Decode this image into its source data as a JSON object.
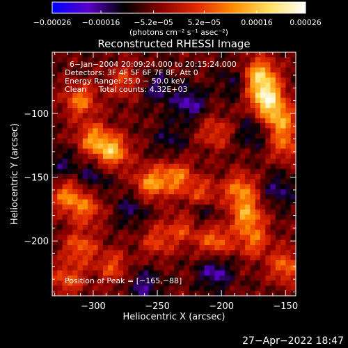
{
  "chart_data": {
    "type": "heatmap",
    "title": "Reconstructed RHESSI Image",
    "xlabel": "Heliocentric X (arcsec)",
    "ylabel": "Heliocentric Y (arcsec)",
    "xlim": [
      -332,
      -142
    ],
    "ylim": [
      -243,
      -52
    ],
    "x_ticks": [
      {
        "value": -300,
        "label": "−300"
      },
      {
        "value": -250,
        "label": "−250"
      },
      {
        "value": -200,
        "label": "−200"
      },
      {
        "value": -150,
        "label": "−150"
      }
    ],
    "y_ticks": [
      {
        "value": -100,
        "label": "−100"
      },
      {
        "value": -150,
        "label": "−150"
      },
      {
        "value": -200,
        "label": "−200"
      }
    ],
    "colorbar": {
      "min": -0.00026,
      "max": 0.00026,
      "ticks": [
        {
          "value": -0.00026,
          "label": "−0.00026"
        },
        {
          "value": -0.00016,
          "label": "−0.00016"
        },
        {
          "value": -5.2e-05,
          "label": "−5.2e−05"
        },
        {
          "value": 5.2e-05,
          "label": "5.2e−05"
        },
        {
          "value": 0.00016,
          "label": "0.00016"
        },
        {
          "value": 0.00026,
          "label": "0.00026"
        }
      ],
      "unit_label": "(photons cm⁻² s⁻¹ asec⁻²)",
      "colors": [
        "#0000ff",
        "#5a00c8",
        "#000000",
        "#8a0000",
        "#e22a00",
        "#ff8c00",
        "#ffe060",
        "#ffffff"
      ]
    },
    "annotations": [
      "6−Jan−2004 20:09:24.000 to 20:15:24.000",
      "Detectors: 3F 4F 5F 6F 7F 8F, Att 0",
      "Energy Range: 25.0 − 50.0 keV",
      "Clean     Total counts: 4.32E+03"
    ],
    "peak_label": "Position of Peak = [−165,−88]",
    "peak": [
      -165,
      -88
    ],
    "hotspots": [
      {
        "x": -165,
        "y": -88,
        "intensity": 0.00026
      },
      {
        "x": -170,
        "y": -70,
        "intensity": 0.00022
      },
      {
        "x": -155,
        "y": -105,
        "intensity": 0.00018
      },
      {
        "x": -285,
        "y": -130,
        "intensity": 0.0002
      },
      {
        "x": -300,
        "y": -120,
        "intensity": 0.00016
      },
      {
        "x": -310,
        "y": -90,
        "intensity": 0.00015
      },
      {
        "x": -255,
        "y": -155,
        "intensity": 0.00017
      },
      {
        "x": -235,
        "y": -150,
        "intensity": 0.00015
      },
      {
        "x": -215,
        "y": -165,
        "intensity": 0.00014
      },
      {
        "x": -185,
        "y": -160,
        "intensity": 0.00016
      },
      {
        "x": -180,
        "y": -180,
        "intensity": 0.00017
      },
      {
        "x": -175,
        "y": -200,
        "intensity": 0.00013
      },
      {
        "x": -205,
        "y": -200,
        "intensity": 0.00014
      },
      {
        "x": -320,
        "y": -165,
        "intensity": 0.00015
      },
      {
        "x": -305,
        "y": -175,
        "intensity": 0.00012
      },
      {
        "x": -310,
        "y": -205,
        "intensity": 0.00013
      },
      {
        "x": -320,
        "y": -230,
        "intensity": 0.00012
      },
      {
        "x": -285,
        "y": -220,
        "intensity": 0.00011
      },
      {
        "x": -250,
        "y": -200,
        "intensity": 0.0001
      },
      {
        "x": -150,
        "y": -220,
        "intensity": 0.00014
      },
      {
        "x": -150,
        "y": -125,
        "intensity": 0.00012
      },
      {
        "x": -205,
        "y": -115,
        "intensity": 0.0001
      },
      {
        "x": -275,
        "y": -75,
        "intensity": 0.0001
      },
      {
        "x": -230,
        "y": -190,
        "intensity": 0.0001
      }
    ],
    "coldspots": [
      {
        "x": -225,
        "y": -92,
        "intensity": -0.00012
      },
      {
        "x": -205,
        "y": -225,
        "intensity": -0.00012
      },
      {
        "x": -260,
        "y": -235,
        "intensity": -0.0001
      },
      {
        "x": -215,
        "y": -175,
        "intensity": -0.0001
      },
      {
        "x": -175,
        "y": -115,
        "intensity": -8e-05
      },
      {
        "x": -250,
        "y": -80,
        "intensity": -9e-05
      },
      {
        "x": -300,
        "y": -150,
        "intensity": -8e-05
      },
      {
        "x": -155,
        "y": -160,
        "intensity": -9e-05
      },
      {
        "x": -270,
        "y": -175,
        "intensity": -8e-05
      },
      {
        "x": -240,
        "y": -120,
        "intensity": -7e-05
      },
      {
        "x": -325,
        "y": -140,
        "intensity": -7e-05
      },
      {
        "x": -190,
        "y": -75,
        "intensity": -7e-05
      }
    ]
  },
  "footer": {
    "date": "27−Apr−2022 18:47"
  }
}
